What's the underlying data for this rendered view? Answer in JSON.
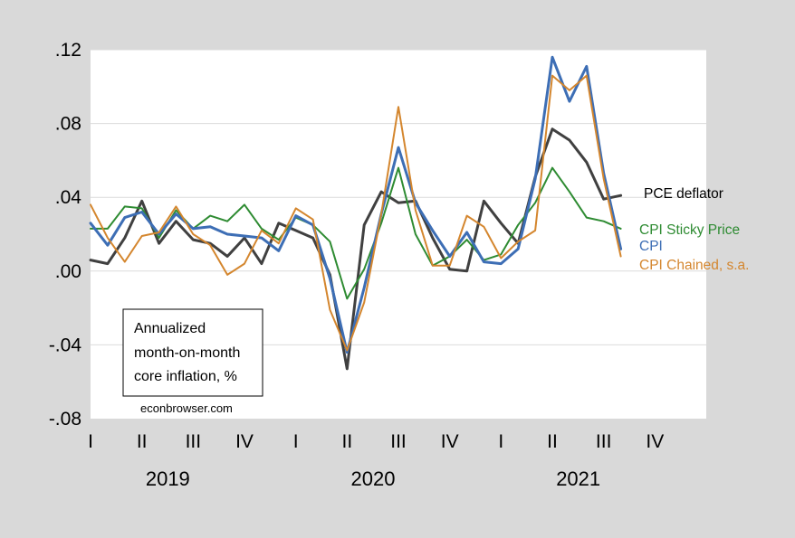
{
  "chart_data": {
    "type": "line",
    "title": "",
    "xlabel": "",
    "ylabel": "",
    "ylim": [
      -0.08,
      0.12
    ],
    "yticks": [
      -0.08,
      -0.04,
      0.0,
      0.04,
      0.08,
      0.12
    ],
    "ytick_labels": [
      "-.08",
      "-.04",
      ".00",
      ".04",
      ".08",
      ".12"
    ],
    "grid": true,
    "x_range": [
      "2019-01",
      "2021-12"
    ],
    "quarter_labels": [
      "I",
      "II",
      "III",
      "IV",
      "I",
      "II",
      "III",
      "IV",
      "I",
      "II",
      "III",
      "IV"
    ],
    "year_labels": [
      "2019",
      "2020",
      "2021"
    ],
    "x": [
      "2019-01",
      "2019-02",
      "2019-03",
      "2019-04",
      "2019-05",
      "2019-06",
      "2019-07",
      "2019-08",
      "2019-09",
      "2019-10",
      "2019-11",
      "2019-12",
      "2020-01",
      "2020-02",
      "2020-03",
      "2020-04",
      "2020-05",
      "2020-06",
      "2020-07",
      "2020-08",
      "2020-09",
      "2020-10",
      "2020-11",
      "2020-12",
      "2021-01",
      "2021-02",
      "2021-03",
      "2021-04",
      "2021-05",
      "2021-06",
      "2021-07",
      "2021-08"
    ],
    "series": [
      {
        "name": "PCE deflator",
        "color": "#404040",
        "width": 3,
        "values": [
          0.006,
          0.004,
          0.018,
          0.038,
          0.015,
          0.027,
          0.017,
          0.015,
          0.008,
          0.018,
          0.004,
          0.026,
          0.022,
          0.018,
          -0.002,
          -0.053,
          0.025,
          0.043,
          0.037,
          0.038,
          0.018,
          0.001,
          0.0,
          0.038,
          0.026,
          0.015,
          0.051,
          0.077,
          0.071,
          0.059,
          0.039,
          0.041
        ]
      },
      {
        "name": "CPI Sticky Price",
        "color": "#2e8b32",
        "width": 2,
        "values": [
          0.023,
          0.023,
          0.035,
          0.034,
          0.018,
          0.033,
          0.023,
          0.03,
          0.027,
          0.036,
          0.023,
          0.017,
          0.029,
          0.025,
          0.016,
          -0.015,
          0.001,
          0.026,
          0.056,
          0.02,
          0.003,
          0.008,
          0.017,
          0.006,
          0.009,
          0.025,
          0.037,
          0.056,
          0.043,
          0.029,
          0.027,
          0.023
        ]
      },
      {
        "name": "CPI",
        "color": "#3d6eb5",
        "width": 3,
        "values": [
          0.026,
          0.014,
          0.029,
          0.032,
          0.02,
          0.031,
          0.023,
          0.024,
          0.02,
          0.019,
          0.018,
          0.011,
          0.03,
          0.025,
          -0.004,
          -0.044,
          -0.009,
          0.031,
          0.067,
          0.037,
          0.022,
          0.008,
          0.021,
          0.005,
          0.004,
          0.012,
          0.05,
          0.116,
          0.092,
          0.111,
          0.053,
          0.012
        ]
      },
      {
        "name": "CPI Chained, s.a.",
        "color": "#d4862e",
        "width": 2,
        "values": [
          0.036,
          0.018,
          0.005,
          0.019,
          0.021,
          0.035,
          0.02,
          0.014,
          -0.002,
          0.004,
          0.022,
          0.015,
          0.034,
          0.028,
          -0.021,
          -0.043,
          -0.017,
          0.031,
          0.089,
          0.033,
          0.003,
          0.003,
          0.03,
          0.024,
          0.007,
          0.016,
          0.022,
          0.106,
          0.098,
          0.106,
          0.05,
          0.008
        ]
      }
    ],
    "legend_placement": "right, at line ends",
    "annotation": {
      "lines": [
        "Annualized",
        "month-on-month",
        "core inflation, %"
      ]
    },
    "credit": "econbrowser.com"
  }
}
